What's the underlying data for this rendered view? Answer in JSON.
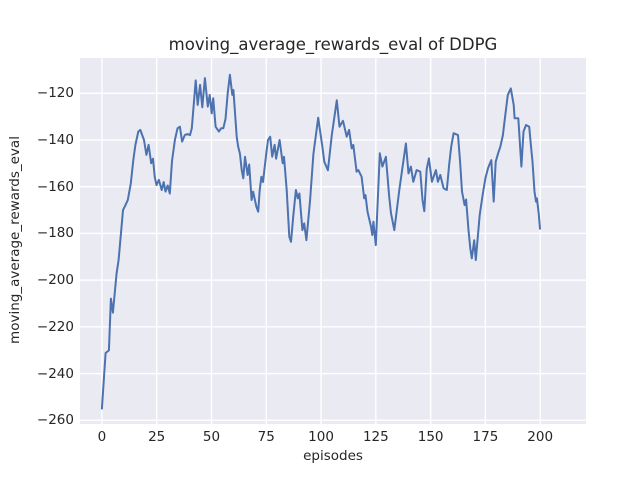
{
  "figure": {
    "title": "moving_average_rewards_eval of DDPG",
    "x_axis_label": "episodes",
    "y_axis_label": "moving_average_rewards_eval"
  },
  "axes": {
    "x_tick_labels": [
      "0",
      "25",
      "50",
      "75",
      "100",
      "125",
      "150",
      "175",
      "200"
    ],
    "x_tick_values": [
      0,
      25,
      50,
      75,
      100,
      125,
      150,
      175,
      200
    ],
    "y_tick_labels": [
      "−120",
      "−140",
      "−160",
      "−180",
      "−200",
      "−220",
      "−240",
      "−260"
    ],
    "y_tick_values": [
      -120,
      -140,
      -160,
      -180,
      -200,
      -220,
      -240,
      -260
    ]
  },
  "colors": {
    "line": "#4c72b0",
    "axes_background": "#eaeaf2",
    "grid": "#ffffff",
    "text": "#262626",
    "figure_background": "#ffffff"
  },
  "chart_data": {
    "type": "line",
    "title": "moving_average_rewards_eval of DDPG",
    "xlabel": "episodes",
    "ylabel": "moving_average_rewards_eval",
    "xlim": [
      -10,
      220.9
    ],
    "ylim": [
      -261.6,
      -104.9
    ],
    "grid": true,
    "legend_position": "none",
    "series": [
      {
        "name": "moving_average_rewards_eval",
        "x": [
          0,
          1.7,
          3.2,
          4.1,
          5,
          6.7,
          7.6,
          9.6,
          10.5,
          11.8,
          13.2,
          14.3,
          15.3,
          16.6,
          17.5,
          18.4,
          19.2,
          20.3,
          21.3,
          22.5,
          23.3,
          24.1,
          24.9,
          26,
          27.3,
          28.2,
          29,
          30,
          31,
          32,
          33.3,
          34.5,
          35.6,
          36.6,
          37.8,
          39,
          40.2,
          41,
          42.8,
          43.7,
          44.8,
          45.8,
          47,
          48.3,
          49.2,
          50.1,
          50.8,
          51.9,
          53.4,
          54.4,
          55.4,
          56.4,
          57.4,
          58.4,
          59.5,
          60,
          61.5,
          62.2,
          63,
          63.8,
          64.5,
          65.3,
          66.5,
          67.2,
          68.3,
          69,
          70.5,
          71.3,
          72,
          72.8,
          73.5,
          75,
          75.8,
          76.8,
          77.7,
          78.8,
          79.5,
          81.1,
          82.5,
          83.1,
          84.3,
          85.5,
          86.3,
          87.4,
          88.5,
          89.4,
          90.1,
          91.5,
          92.3,
          93.3,
          95,
          96.5,
          98.7,
          100.6,
          101.5,
          103.1,
          104.9,
          107.2,
          108.4,
          110,
          111.7,
          112.8,
          114,
          114.7,
          116.2,
          117,
          118.5,
          119.7,
          120.3,
          121.2,
          122.8,
          123.4,
          123.9,
          125,
          126.8,
          128,
          129.6,
          131.1,
          131.9,
          133.4,
          135.7,
          137.2,
          138.7,
          139.9,
          141,
          142.1,
          143.6,
          145.3,
          146.3,
          147.1,
          148.2,
          149.2,
          150.6,
          152.4,
          153.3,
          154.4,
          155.9,
          157.4,
          158.5,
          159.4,
          160.5,
          162.5,
          163.5,
          164.3,
          165.5,
          166.2,
          167.3,
          168.1,
          168.8,
          169.9,
          170.6,
          172.4,
          173.7,
          175,
          176.2,
          177.7,
          178.8,
          179.7,
          180.8,
          181.8,
          183,
          183.8,
          185.2,
          186.6,
          187.9,
          188.3,
          190,
          191.4,
          192.4,
          193.5,
          195,
          195.9,
          196.5,
          197.4,
          198.1,
          198.5,
          199.3,
          199.9
        ],
        "y": [
          -255,
          -231.2,
          -230.1,
          -207.9,
          -213.9,
          -197.1,
          -191.4,
          -170,
          -168.4,
          -165.7,
          -158.6,
          -148.6,
          -142.1,
          -136.4,
          -135.7,
          -137.9,
          -140,
          -146.4,
          -142.1,
          -150,
          -148,
          -155.7,
          -159.3,
          -157.1,
          -161.4,
          -158,
          -162.1,
          -159.5,
          -162.9,
          -149,
          -140,
          -135,
          -134.3,
          -140.7,
          -137.9,
          -137.5,
          -137.9,
          -135,
          -114.5,
          -125,
          -116.4,
          -126,
          -113.5,
          -125.7,
          -120.7,
          -128.6,
          -122.1,
          -134.3,
          -136.4,
          -135,
          -135,
          -131,
          -120,
          -112.1,
          -120.7,
          -118.6,
          -138.6,
          -142.9,
          -146,
          -152.9,
          -156.4,
          -147.2,
          -155,
          -150.5,
          -165.7,
          -162.1,
          -168.6,
          -170.7,
          -161.4,
          -155.7,
          -158,
          -145.7,
          -140,
          -138.6,
          -147.2,
          -142.1,
          -148,
          -140,
          -150,
          -147.2,
          -161.4,
          -181.4,
          -183.6,
          -172,
          -161.4,
          -165,
          -162.9,
          -178.6,
          -175.7,
          -182.9,
          -165.7,
          -146,
          -130.5,
          -143,
          -149.3,
          -153,
          -137.9,
          -123,
          -134.3,
          -131.8,
          -138.6,
          -135.7,
          -143.6,
          -142.1,
          -153.6,
          -152.9,
          -155.7,
          -165,
          -163.6,
          -170.7,
          -177.1,
          -180.7,
          -175,
          -185,
          -145.7,
          -151.4,
          -147.2,
          -164.3,
          -171.4,
          -178.6,
          -161.4,
          -151.4,
          -141.5,
          -154.3,
          -151.4,
          -157.9,
          -152.9,
          -153.6,
          -165.7,
          -170.5,
          -152.5,
          -147.9,
          -157.9,
          -152.9,
          -157.9,
          -155,
          -160.7,
          -161.4,
          -150,
          -142.9,
          -137.1,
          -137.9,
          -150,
          -162.1,
          -167.9,
          -165.5,
          -178.6,
          -186.4,
          -190.7,
          -182.9,
          -191.4,
          -172.1,
          -163.6,
          -156.4,
          -152.1,
          -148.6,
          -166.4,
          -149.3,
          -145.7,
          -142.9,
          -137.9,
          -131.4,
          -120.7,
          -117.9,
          -125,
          -130.7,
          -130.7,
          -151.4,
          -136.4,
          -133.6,
          -134.3,
          -143.6,
          -149.3,
          -162.1,
          -166.4,
          -165,
          -171.4,
          -178
        ]
      }
    ]
  }
}
